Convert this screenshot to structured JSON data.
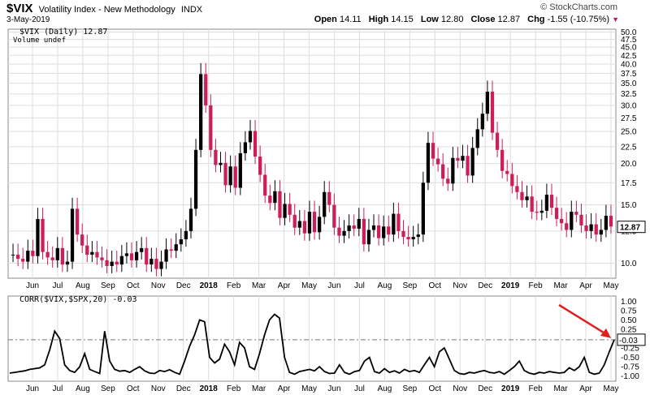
{
  "header": {
    "symbol": "$VIX",
    "name": "Volatility Index - New Methodology",
    "exchange": "INDX",
    "date": "3-May-2019",
    "brand": "© StockCharts.com",
    "ohlc": {
      "open_label": "Open",
      "open": "14.11",
      "high_label": "High",
      "high": "14.15",
      "low_label": "Low",
      "low": "12.80",
      "close_label": "Close",
      "close": "12.87",
      "chg_label": "Chg",
      "chg": "-1.55 (-10.75%)"
    }
  },
  "legend": {
    "price": "$VIX (Daily) 12.87",
    "volume": "Volume undef",
    "corr": "CORR($VIX,$SPX,20) -0.03"
  },
  "colors": {
    "up": "#000000",
    "down": "#cc1f55",
    "corr": "#000000",
    "arrow": "#e02020",
    "grid": "#dddddd",
    "last_label": "#000000"
  },
  "chart_data": [
    {
      "type": "candlestick",
      "title": "$VIX Volatility Index - New Methodology INDX",
      "y_ticks": [
        10.0,
        12.5,
        15.0,
        17.5,
        20.0,
        22.5,
        25.0,
        27.5,
        30.0,
        32.5,
        35.0,
        37.5,
        40.0,
        42.5,
        45.0,
        47.5,
        50.0
      ],
      "y_log_scale": true,
      "ylim": [
        9.0,
        51.0
      ],
      "last_value": "12.87",
      "x_ticks": [
        "Jun",
        "Jul",
        "Aug",
        "Sep",
        "Oct",
        "Nov",
        "Dec",
        "2018",
        "Feb",
        "Mar",
        "Apr",
        "May",
        "Jun",
        "Jul",
        "Aug",
        "Sep",
        "Oct",
        "Nov",
        "Dec",
        "2019",
        "Feb",
        "Mar",
        "Apr",
        "May"
      ],
      "x_bold": [
        "2018",
        "2019"
      ],
      "series_close": [
        10.6,
        10.3,
        10.1,
        10.9,
        10.5,
        13.6,
        10.8,
        10.4,
        10.2,
        11.1,
        9.9,
        10.1,
        14.6,
        12.2,
        11.3,
        10.6,
        10.8,
        10.4,
        10.2,
        9.8,
        10.1,
        9.9,
        10.5,
        10.7,
        10.2,
        10.8,
        11.1,
        9.9,
        10.3,
        9.6,
        10.1,
        11.0,
        10.9,
        11.4,
        11.8,
        12.5,
        14.6,
        22.0,
        37.3,
        30.0,
        22.0,
        19.8,
        20.1,
        17.2,
        19.6,
        16.9,
        21.5,
        23.2,
        25.1,
        21.0,
        18.5,
        16.0,
        15.2,
        16.5,
        13.7,
        15.1,
        14.0,
        12.8,
        13.4,
        12.3,
        14.3,
        12.4,
        13.8,
        16.4,
        15.0,
        12.8,
        12.1,
        12.5,
        13.0,
        12.7,
        13.6,
        11.4,
        12.6,
        13.0,
        11.9,
        12.9,
        12.2,
        14.1,
        12.5,
        12.0,
        11.8,
        12.0,
        12.2,
        17.5,
        23.1,
        20.7,
        19.9,
        18.0,
        17.4,
        20.8,
        20.4,
        21.1,
        18.4,
        22.3,
        25.4,
        28.3,
        33.0,
        24.8,
        22.0,
        19.0,
        18.6,
        17.1,
        16.4,
        15.5,
        15.9,
        14.3,
        14.2,
        14.4,
        16.1,
        14.7,
        13.6,
        13.2,
        12.6,
        14.3,
        14.0,
        13.0,
        12.5,
        13.1,
        12.2,
        12.6,
        13.9,
        12.9
      ],
      "x_range": [
        "2017-05",
        "2019-05-03"
      ]
    },
    {
      "type": "line",
      "title": "CORR($VIX,$SPX,20) -0.03",
      "y_ticks": [
        1.0,
        0.75,
        0.5,
        0.25,
        0.0,
        -0.25,
        -0.5,
        -0.75,
        -1.0
      ],
      "ylim": [
        -1.05,
        1.05
      ],
      "reference_line": -0.03,
      "last_value": "-0.03",
      "x_ticks": [
        "Jun",
        "Jul",
        "Aug",
        "Sep",
        "Oct",
        "Nov",
        "Dec",
        "2018",
        "Feb",
        "Mar",
        "Apr",
        "May",
        "Jun",
        "Jul",
        "Aug",
        "Sep",
        "Oct",
        "Nov",
        "Dec",
        "2019",
        "Feb",
        "Mar",
        "Apr",
        "May"
      ],
      "values": [
        -0.92,
        -0.9,
        -0.88,
        -0.86,
        -0.82,
        -0.8,
        -0.78,
        -0.7,
        -0.3,
        0.2,
        0.0,
        -0.7,
        -0.85,
        -0.9,
        -0.75,
        -0.4,
        -0.82,
        -0.88,
        -0.93,
        0.2,
        -0.6,
        -0.82,
        -0.87,
        -0.85,
        -0.9,
        -0.82,
        -0.75,
        -0.86,
        -0.92,
        -0.93,
        -0.85,
        -0.88,
        -0.83,
        -0.9,
        -0.95,
        -0.6,
        -0.2,
        0.1,
        0.5,
        0.45,
        -0.5,
        -0.65,
        -0.55,
        -0.15,
        -0.35,
        -0.7,
        -0.1,
        -0.25,
        -0.75,
        -0.82,
        -0.4,
        0.1,
        0.5,
        0.65,
        0.55,
        -0.5,
        -0.9,
        -0.95,
        -0.88,
        -0.85,
        -0.82,
        -0.86,
        -0.75,
        -0.88,
        -0.93,
        -0.92,
        -0.7,
        -0.9,
        -0.95,
        -0.88,
        -0.85,
        -0.6,
        -0.5,
        -0.88,
        -0.92,
        -0.8,
        -0.9,
        -0.86,
        -0.92,
        -0.82,
        -0.88,
        -0.85,
        -0.9,
        -0.7,
        -0.5,
        -0.75,
        -0.35,
        -0.25,
        -0.55,
        -0.85,
        -0.93,
        -0.95,
        -0.9,
        -0.92,
        -0.88,
        -0.85,
        -0.9,
        -0.92,
        -0.88,
        -0.95,
        -0.85,
        -0.75,
        -0.6,
        -0.85,
        -0.92,
        -0.95,
        -0.9,
        -0.92,
        -0.88,
        -0.9,
        -0.92,
        -0.9,
        -0.78,
        -0.85,
        -0.75,
        -0.5,
        -0.9,
        -0.95,
        -0.92,
        -0.7,
        -0.35,
        -0.03
      ]
    }
  ]
}
